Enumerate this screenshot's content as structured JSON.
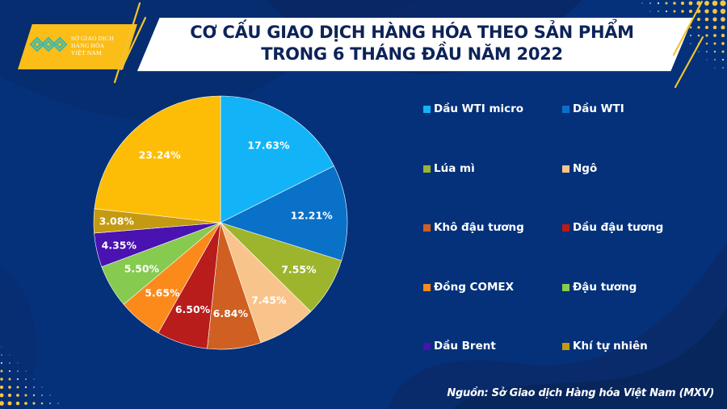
{
  "header": {
    "title_line1": "CƠ CẤU GIAO DỊCH HÀNG HÓA THEO SẢN PHẨM",
    "title_line2": "TRONG 6 THÁNG ĐẦU NĂM 2022"
  },
  "logo": {
    "line1": "SỞ GIAO DỊCH",
    "line2": "HÀNG HÓA",
    "line3": "VIỆT NAM",
    "icon": "mxv-logo-icon"
  },
  "legend": {
    "items": [
      {
        "label": "Dầu WTI micro",
        "color": "#12b4f7"
      },
      {
        "label": "Dầu WTI",
        "color": "#0a71c9"
      },
      {
        "label": "Lúa mì",
        "color": "#9db52c"
      },
      {
        "label": "Ngô",
        "color": "#f9c48b"
      },
      {
        "label": "Khô đậu tương",
        "color": "#cf6021"
      },
      {
        "label": "Dầu đậu tương",
        "color": "#b81c1b"
      },
      {
        "label": "Đồng COMEX",
        "color": "#fb8a1a"
      },
      {
        "label": "Đậu tương",
        "color": "#86ca50"
      },
      {
        "label": "Dầu Brent",
        "color": "#4a12b0"
      },
      {
        "label": "Khí tự nhiên",
        "color": "#c49a12"
      }
    ]
  },
  "source": "Nguồn: Sở Giao dịch Hàng hóa Việt Nam (MXV)",
  "colors": {
    "background": "#04317a",
    "banner": "#ffffff",
    "title_text": "#0d2358",
    "accent_yellow": "#fbbd18"
  },
  "chart_data": {
    "type": "pie",
    "title": "CƠ CẤU GIAO DỊCH HÀNG HÓA THEO SẢN PHẨM TRONG 6 THÁNG ĐẦU NĂM 2022",
    "start_angle": "12 o'clock, clockwise",
    "unit": "%",
    "legend_position": "right",
    "slices": [
      {
        "label": "Dầu WTI micro",
        "value": 17.63,
        "display": "17.63%",
        "color": "#12b4f7"
      },
      {
        "label": "Dầu WTI",
        "value": 12.21,
        "display": "12.21%",
        "color": "#0a71c9"
      },
      {
        "label": "Lúa mì",
        "value": 7.55,
        "display": "7.55%",
        "color": "#9db52c"
      },
      {
        "label": "Ngô",
        "value": 7.45,
        "display": "7.45%",
        "color": "#f9c48b"
      },
      {
        "label": "Khô đậu tương",
        "value": 6.84,
        "display": "6.84%",
        "color": "#cf6021"
      },
      {
        "label": "Dầu đậu tương",
        "value": 6.5,
        "display": "6.50%",
        "color": "#b81c1b"
      },
      {
        "label": "Đồng COMEX",
        "value": 5.65,
        "display": "5.65%",
        "color": "#fb8a1a"
      },
      {
        "label": "Đậu tương",
        "value": 5.5,
        "display": "5.50%",
        "color": "#86ca50"
      },
      {
        "label": "Dầu Brent",
        "value": 4.35,
        "display": "4.35%",
        "color": "#4a12b0"
      },
      {
        "label": "Khí tự nhiên",
        "value": 3.08,
        "display": "3.08%",
        "color": "#c49a12"
      },
      {
        "label": "",
        "value": 23.24,
        "display": "23.24%",
        "color": "#fdbd07"
      }
    ]
  }
}
